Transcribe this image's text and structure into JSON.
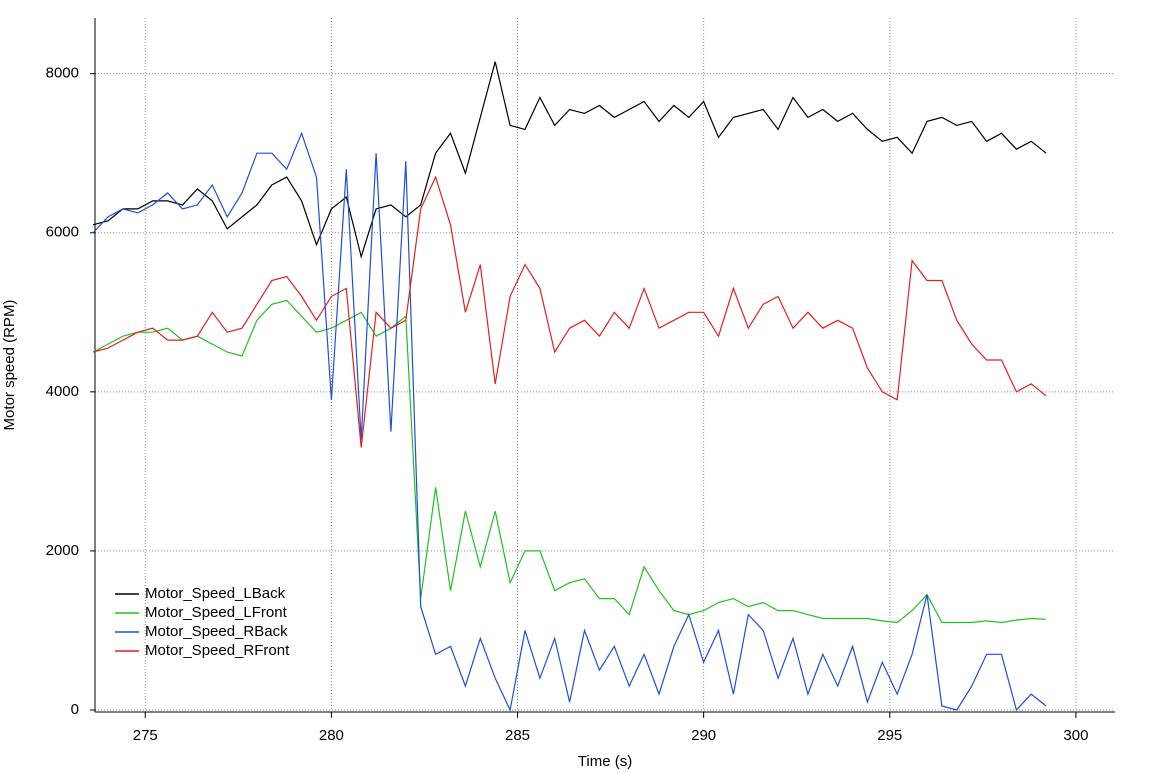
{
  "chart_data": {
    "type": "line",
    "xlabel": "Time (s)",
    "ylabel": "Motor speed (RPM)",
    "x": [
      273.6,
      274.0,
      274.4,
      274.8,
      275.2,
      275.6,
      276.0,
      276.4,
      276.8,
      277.2,
      277.6,
      278.0,
      278.4,
      278.8,
      279.2,
      279.6,
      280.0,
      280.4,
      280.8,
      281.2,
      281.6,
      282.0,
      282.4,
      282.8,
      283.2,
      283.6,
      284.0,
      284.4,
      284.8,
      285.2,
      285.6,
      286.0,
      286.4,
      286.8,
      287.2,
      287.6,
      288.0,
      288.4,
      288.8,
      289.2,
      289.6,
      290.0,
      290.4,
      290.8,
      291.2,
      291.6,
      292.0,
      292.4,
      292.8,
      293.2,
      293.6,
      294.0,
      294.4,
      294.8,
      295.2,
      295.6,
      296.0,
      296.4,
      296.8,
      297.2,
      297.6,
      298.0,
      298.4,
      298.8,
      299.2
    ],
    "series": [
      {
        "name": "Motor_Speed_LBack",
        "color": "#000000",
        "values": [
          6100,
          6150,
          6300,
          6300,
          6400,
          6400,
          6350,
          6550,
          6400,
          6050,
          6200,
          6350,
          6600,
          6700,
          6400,
          5850,
          6300,
          6450,
          5700,
          6300,
          6350,
          6200,
          6350,
          7000,
          7250,
          6750,
          7450,
          8150,
          7350,
          7300,
          7700,
          7350,
          7550,
          7500,
          7600,
          7450,
          7550,
          7650,
          7400,
          7600,
          7450,
          7650,
          7200,
          7450,
          7500,
          7550,
          7300,
          7700,
          7450,
          7550,
          7400,
          7500,
          7300,
          7150,
          7200,
          7000,
          7400,
          7450,
          7350,
          7400,
          7150,
          7250,
          7050,
          7150,
          7000
        ]
      },
      {
        "name": "Motor_Speed_LFront",
        "color": "#1fc21f",
        "values": [
          4500,
          4600,
          4700,
          4750,
          4750,
          4800,
          4650,
          4700,
          4600,
          4500,
          4450,
          4900,
          5100,
          5150,
          4950,
          4750,
          4800,
          4900,
          5000,
          4700,
          4800,
          4950,
          1400,
          2800,
          1500,
          2500,
          1800,
          2500,
          1600,
          2000,
          2000,
          1500,
          1600,
          1650,
          1400,
          1400,
          1200,
          1800,
          1500,
          1250,
          1200,
          1250,
          1350,
          1400,
          1300,
          1350,
          1250,
          1250,
          1200,
          1150,
          1150,
          1150,
          1150,
          1120,
          1100,
          1250,
          1450,
          1100,
          1100,
          1100,
          1120,
          1100,
          1130,
          1150,
          1140
        ]
      },
      {
        "name": "Motor_Speed_RBack",
        "color": "#1f4fd6",
        "values": [
          6000,
          6200,
          6300,
          6250,
          6350,
          6500,
          6300,
          6350,
          6600,
          6200,
          6500,
          7000,
          7000,
          6800,
          7250,
          6700,
          3900,
          6800,
          3400,
          7000,
          3500,
          6900,
          1300,
          700,
          800,
          300,
          900,
          400,
          0,
          1000,
          400,
          900,
          100,
          1000,
          500,
          800,
          300,
          700,
          200,
          800,
          1200,
          600,
          1000,
          200,
          1200,
          1000,
          400,
          900,
          200,
          700,
          300,
          800,
          100,
          600,
          200,
          700,
          1450,
          50,
          0,
          300,
          700,
          700,
          0,
          200,
          50
        ]
      },
      {
        "name": "Motor_Speed_RFront",
        "color": "#e02020",
        "values": [
          4500,
          4550,
          4650,
          4750,
          4800,
          4650,
          4650,
          4700,
          5000,
          4750,
          4800,
          5100,
          5400,
          5450,
          5200,
          4900,
          5200,
          5300,
          3300,
          5000,
          4800,
          4900,
          6300,
          6700,
          6100,
          5000,
          5600,
          4100,
          5200,
          5600,
          5300,
          4500,
          4800,
          4900,
          4700,
          5000,
          4800,
          5300,
          4800,
          4900,
          5000,
          5000,
          4700,
          5300,
          4800,
          5100,
          5200,
          4800,
          5000,
          4800,
          4900,
          4800,
          4300,
          4000,
          3900,
          5650,
          5400,
          5400,
          4900,
          4600,
          4400,
          4400,
          4000,
          4100,
          3950
        ]
      }
    ],
    "xlim": [
      273.65,
      301.05
    ],
    "xticks": [
      275,
      280,
      285,
      290,
      295,
      300
    ],
    "ylim": [
      0,
      8700
    ],
    "yticks": [
      0,
      2000,
      4000,
      6000,
      8000
    ],
    "grid": true,
    "legend": "lower left"
  }
}
